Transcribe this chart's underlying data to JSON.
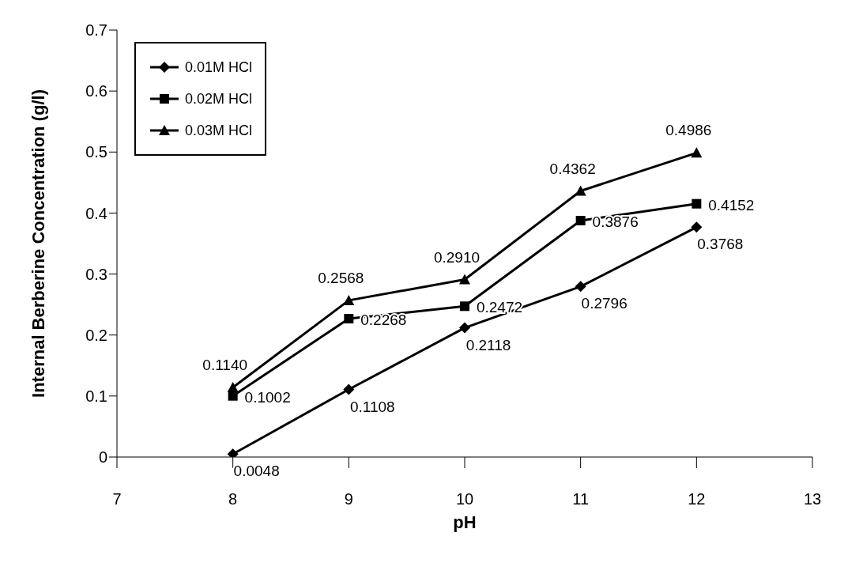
{
  "chart_data": {
    "type": "line",
    "xlabel": "pH",
    "ylabel": "Internal Berberine Concentration (g/l)",
    "x": [
      8,
      9,
      10,
      11,
      12
    ],
    "series": [
      {
        "name": "0.01M HCl",
        "color": "#000000",
        "marker": "diamond",
        "values": [
          0.0048,
          0.1108,
          0.2118,
          0.2796,
          0.3768
        ],
        "value_labels": [
          "0.0048",
          "0.1108",
          "0.2118",
          "0.2796",
          "0.3768"
        ]
      },
      {
        "name": "0.02M HCl",
        "color": "#000000",
        "marker": "square",
        "values": [
          0.1002,
          0.2268,
          0.2472,
          0.3876,
          0.4152
        ],
        "value_labels": [
          "0.1002",
          "0.2268",
          "0.2472",
          "0.3876",
          "0.4152"
        ]
      },
      {
        "name": "0.03M HCl",
        "color": "#000000",
        "marker": "triangle",
        "values": [
          0.114,
          0.2568,
          0.291,
          0.4362,
          0.4986
        ],
        "value_labels": [
          "0.1140",
          "0.2568",
          "0.2910",
          "0.4362",
          "0.4986"
        ]
      }
    ],
    "xlim": [
      7,
      13
    ],
    "xticks": [
      7,
      8,
      9,
      10,
      11,
      12,
      13
    ],
    "ylim": [
      0,
      0.7
    ],
    "yticks": [
      0,
      0.1,
      0.2,
      0.3,
      0.4,
      0.5,
      0.6,
      0.7
    ],
    "grid": false,
    "legend": "top left",
    "line_style": "solid"
  }
}
